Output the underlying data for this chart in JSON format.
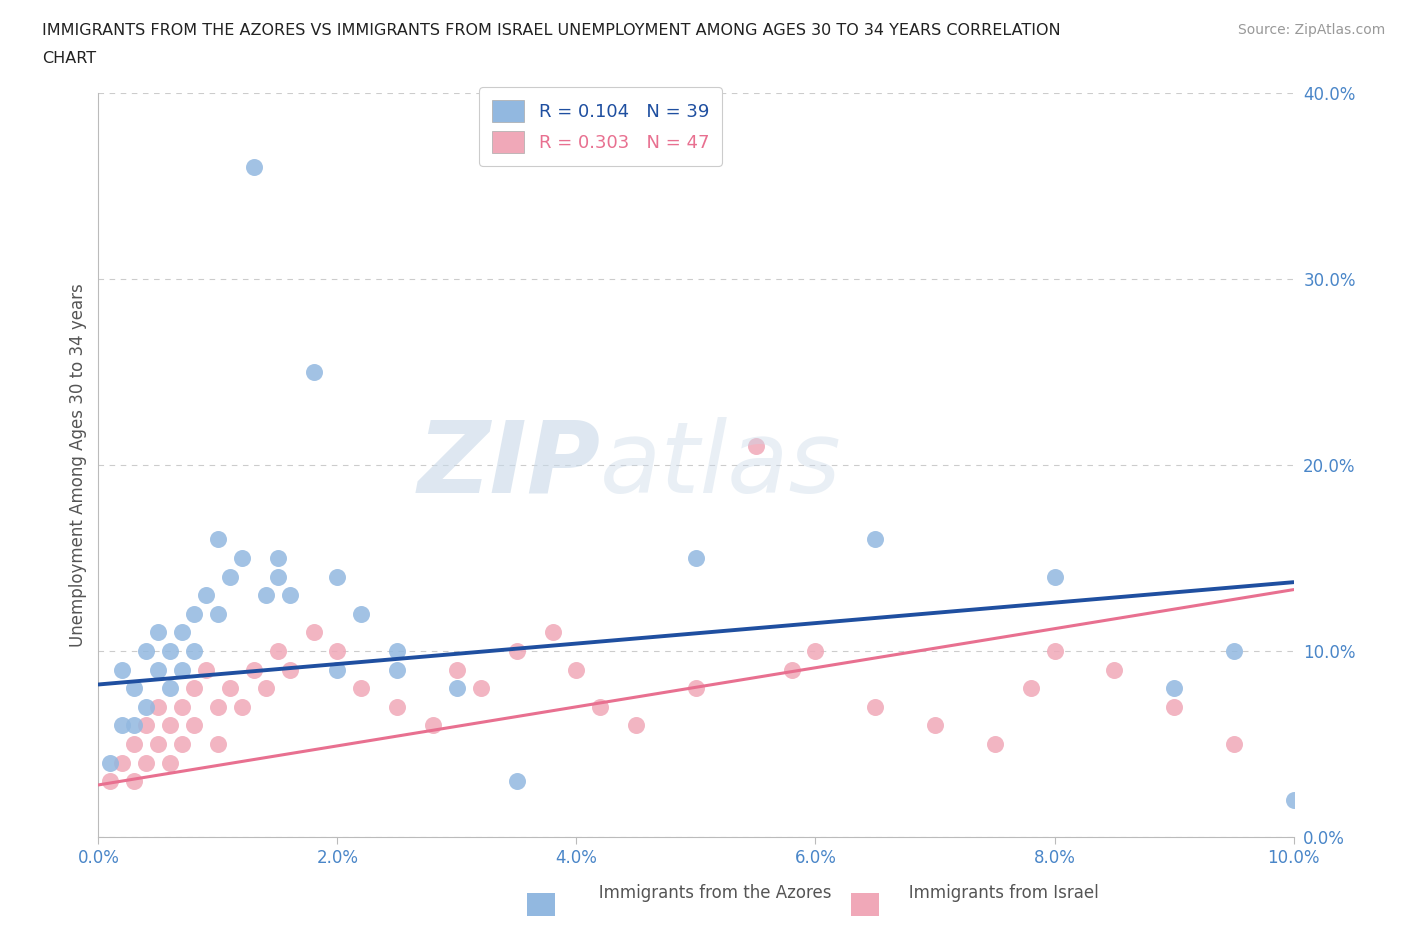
{
  "title_line1": "IMMIGRANTS FROM THE AZORES VS IMMIGRANTS FROM ISRAEL UNEMPLOYMENT AMONG AGES 30 TO 34 YEARS CORRELATION",
  "title_line2": "CHART",
  "source": "Source: ZipAtlas.com",
  "ylabel": "Unemployment Among Ages 30 to 34 years",
  "xlim": [
    0.0,
    0.1
  ],
  "ylim": [
    0.0,
    0.4
  ],
  "xticks": [
    0.0,
    0.02,
    0.04,
    0.06,
    0.08,
    0.1
  ],
  "yticks": [
    0.0,
    0.1,
    0.2,
    0.3,
    0.4
  ],
  "xtick_labels": [
    "0.0%",
    "2.0%",
    "4.0%",
    "6.0%",
    "8.0%",
    "10.0%"
  ],
  "ytick_labels": [
    "0.0%",
    "10.0%",
    "20.0%",
    "30.0%",
    "40.0%"
  ],
  "azores_color": "#92b8e0",
  "israel_color": "#f0a8b8",
  "azores_line_color": "#1f4fa0",
  "israel_line_color": "#e87090",
  "azores_R": 0.104,
  "azores_N": 39,
  "israel_R": 0.303,
  "israel_N": 47,
  "legend_label_azores": "Immigrants from the Azores",
  "legend_label_israel": "Immigrants from Israel",
  "azores_x": [
    0.001,
    0.002,
    0.002,
    0.003,
    0.003,
    0.004,
    0.004,
    0.005,
    0.005,
    0.006,
    0.006,
    0.007,
    0.007,
    0.008,
    0.008,
    0.009,
    0.01,
    0.011,
    0.012,
    0.013,
    0.014,
    0.015,
    0.016,
    0.018,
    0.02,
    0.022,
    0.025,
    0.03,
    0.035,
    0.01,
    0.015,
    0.02,
    0.025,
    0.05,
    0.065,
    0.08,
    0.09,
    0.095,
    0.1
  ],
  "azores_y": [
    0.04,
    0.06,
    0.09,
    0.06,
    0.08,
    0.07,
    0.1,
    0.09,
    0.11,
    0.08,
    0.1,
    0.09,
    0.11,
    0.12,
    0.1,
    0.13,
    0.12,
    0.14,
    0.15,
    0.36,
    0.13,
    0.15,
    0.13,
    0.25,
    0.14,
    0.12,
    0.1,
    0.08,
    0.03,
    0.16,
    0.14,
    0.09,
    0.09,
    0.15,
    0.16,
    0.14,
    0.08,
    0.1,
    0.02
  ],
  "israel_x": [
    0.001,
    0.002,
    0.003,
    0.003,
    0.004,
    0.004,
    0.005,
    0.005,
    0.006,
    0.006,
    0.007,
    0.007,
    0.008,
    0.008,
    0.009,
    0.01,
    0.01,
    0.011,
    0.012,
    0.013,
    0.014,
    0.015,
    0.016,
    0.018,
    0.02,
    0.022,
    0.025,
    0.028,
    0.03,
    0.032,
    0.035,
    0.038,
    0.04,
    0.042,
    0.045,
    0.05,
    0.055,
    0.058,
    0.06,
    0.065,
    0.07,
    0.075,
    0.078,
    0.08,
    0.085,
    0.09,
    0.095
  ],
  "israel_y": [
    0.03,
    0.04,
    0.05,
    0.03,
    0.06,
    0.04,
    0.07,
    0.05,
    0.06,
    0.04,
    0.07,
    0.05,
    0.08,
    0.06,
    0.09,
    0.07,
    0.05,
    0.08,
    0.07,
    0.09,
    0.08,
    0.1,
    0.09,
    0.11,
    0.1,
    0.08,
    0.07,
    0.06,
    0.09,
    0.08,
    0.1,
    0.11,
    0.09,
    0.07,
    0.06,
    0.08,
    0.21,
    0.09,
    0.1,
    0.07,
    0.06,
    0.05,
    0.08,
    0.1,
    0.09,
    0.07,
    0.05
  ],
  "watermark_zip": "ZIP",
  "watermark_atlas": "atlas",
  "background_color": "#ffffff",
  "grid_color": "#cccccc",
  "tick_color": "#4a86c8",
  "ylabel_color": "#555555"
}
